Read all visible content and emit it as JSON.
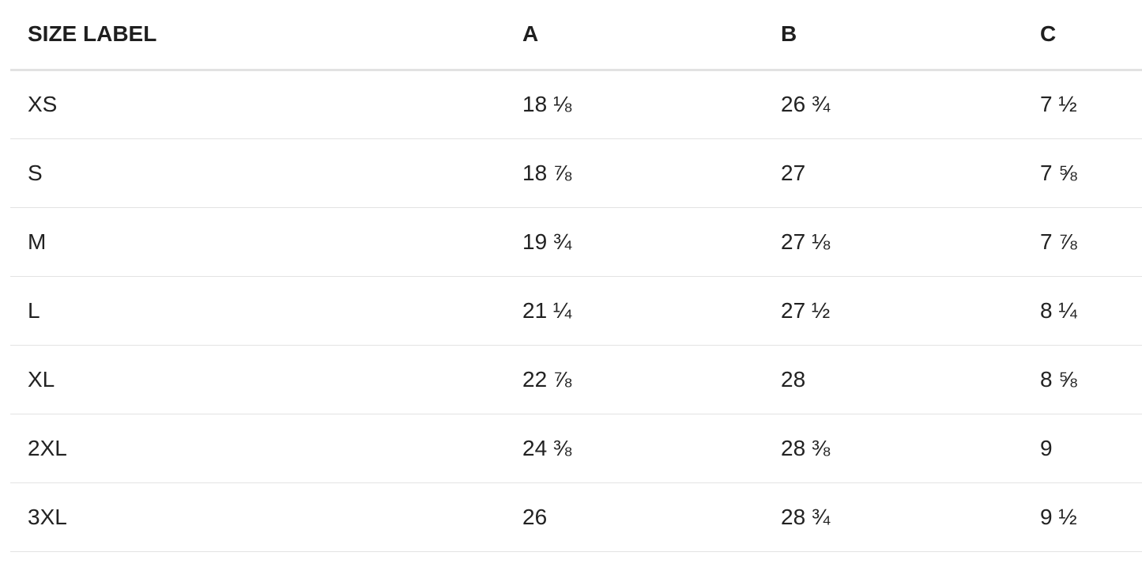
{
  "table": {
    "headers": [
      "SIZE LABEL",
      "A",
      "B",
      "C"
    ],
    "rows": [
      [
        "XS",
        "18 ⅛",
        "26 ¾",
        "7 ½"
      ],
      [
        "S",
        "18 ⅞",
        "27",
        "7 ⅝"
      ],
      [
        "M",
        "19 ¾",
        "27 ⅛",
        "7 ⅞"
      ],
      [
        "L",
        "21 ¼",
        "27 ½",
        "8 ¼"
      ],
      [
        "XL",
        "22 ⅞",
        "28",
        "8 ⅝"
      ],
      [
        "2XL",
        "24 ⅜",
        "28 ⅜",
        "9"
      ],
      [
        "3XL",
        "26",
        "28 ¾",
        "9 ½"
      ]
    ]
  },
  "colors": {
    "text": "#222222",
    "header_border": "#e2e2e2",
    "row_border": "#e3e3e3",
    "background": "#ffffff"
  }
}
